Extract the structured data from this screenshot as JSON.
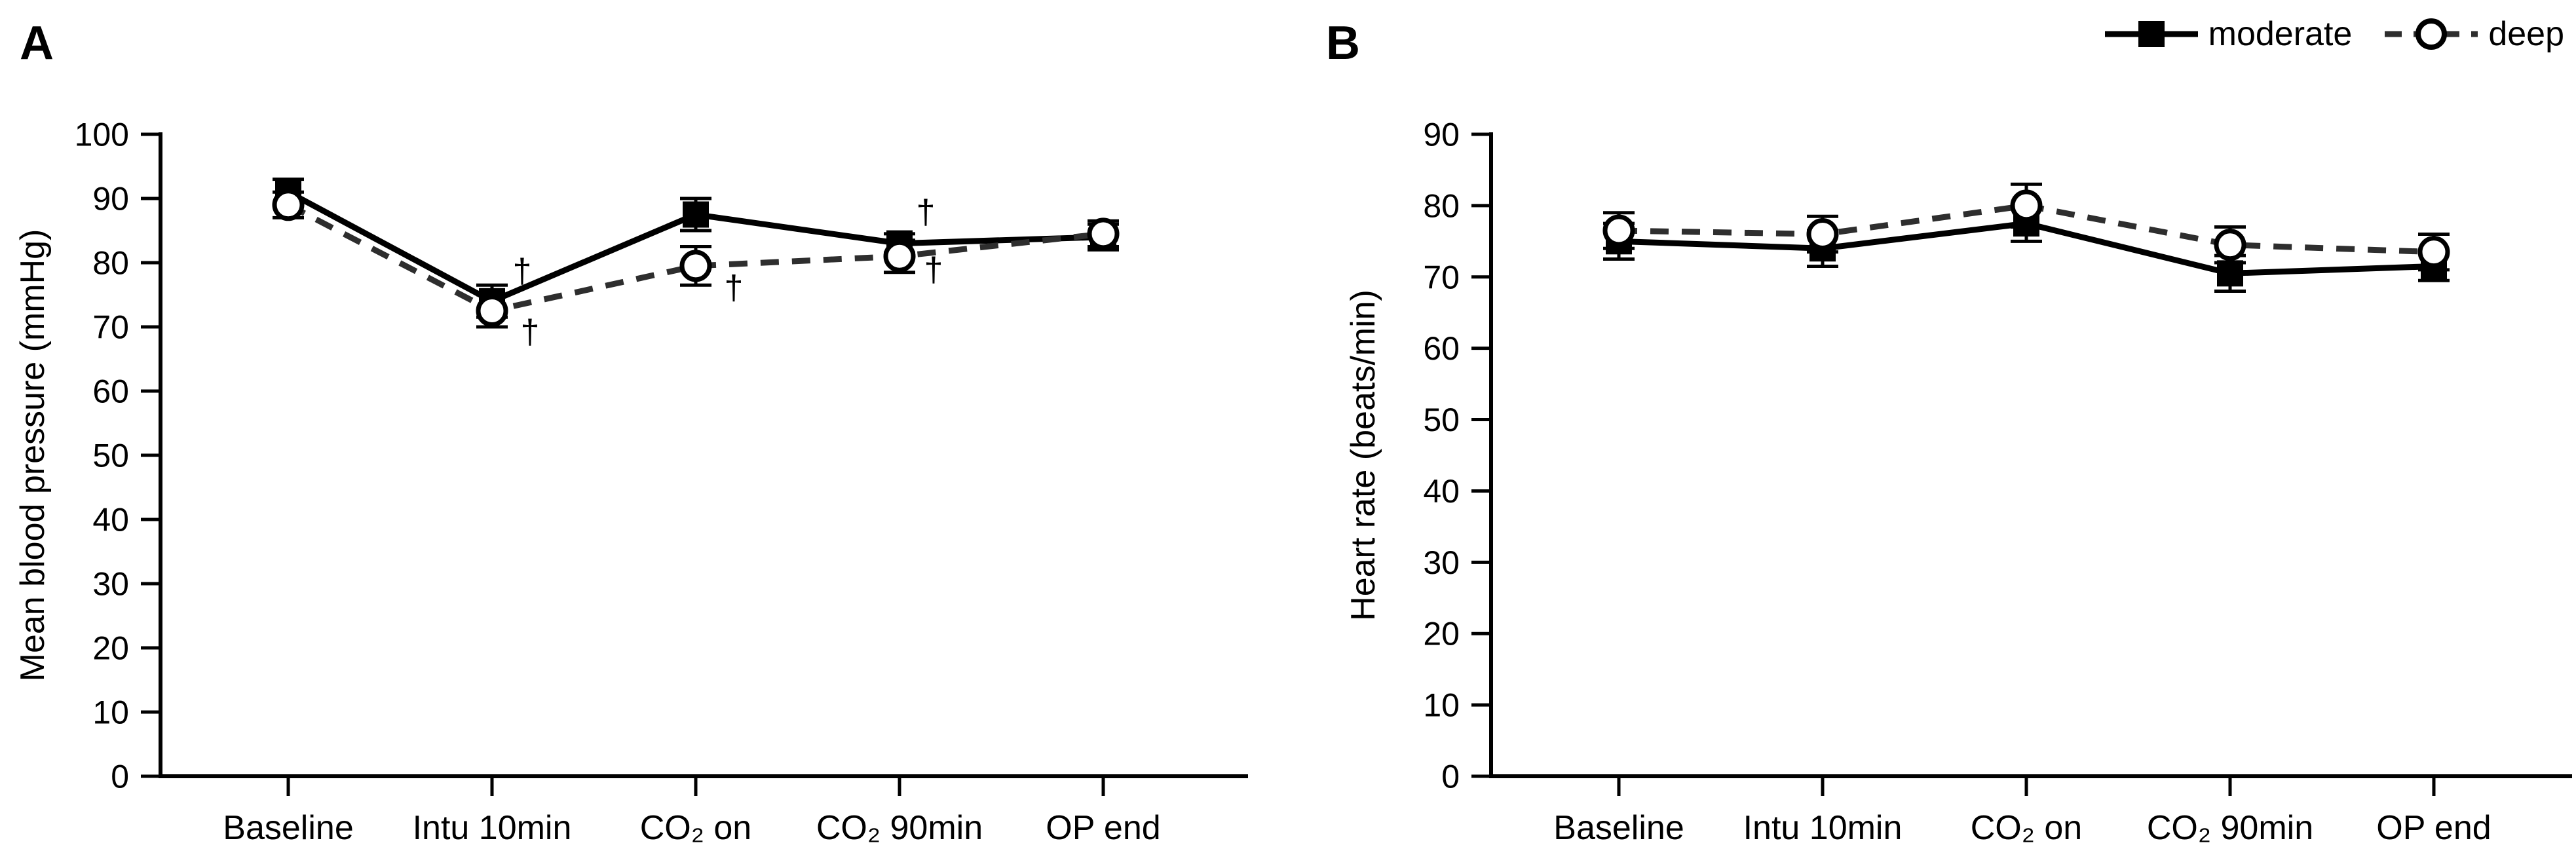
{
  "colors": {
    "ink": "#000000",
    "dash_line": "#2e2e2e",
    "background": "#ffffff",
    "marker_fill": "#ffffff"
  },
  "legend": {
    "position": "top-right",
    "items": [
      {
        "label": "moderate",
        "marker": "filled-square",
        "line": "solid"
      },
      {
        "label": "deep",
        "marker": "open-circle",
        "line": "dashed"
      }
    ]
  },
  "chart_data": [
    {
      "type": "line",
      "panel_label": "A",
      "ylabel": "Mean blood pressure (mmHg)",
      "xlabel": "",
      "ylim": [
        0,
        100
      ],
      "ytick_step": 10,
      "grid": false,
      "error_bars": true,
      "categories": [
        "Baseline",
        "Intu 10min",
        "CO₂ on",
        "CO₂ 90min",
        "OP end"
      ],
      "series": [
        {
          "name": "moderate",
          "marker": "filled-square",
          "line": "solid",
          "values": [
            91,
            74,
            87.5,
            83,
            84
          ],
          "errors": [
            2,
            2.5,
            2.5,
            1.5,
            2
          ]
        },
        {
          "name": "deep",
          "marker": "open-circle",
          "line": "dashed",
          "values": [
            89,
            72.5,
            79.5,
            81,
            84.5
          ],
          "errors": [
            2,
            2.5,
            3,
            2.5,
            2
          ]
        }
      ],
      "annotations": [
        {
          "symbol": "†",
          "category_index": 1,
          "value": 78.8,
          "dx": 46
        },
        {
          "symbol": "†",
          "category_index": 1,
          "value": 69.3,
          "dx": 58
        },
        {
          "symbol": "†",
          "category_index": 2,
          "value": 76.2,
          "dx": 58
        },
        {
          "symbol": "†",
          "category_index": 3,
          "value": 88.0,
          "dx": 40
        },
        {
          "symbol": "†",
          "category_index": 3,
          "value": 79.0,
          "dx": 52
        }
      ]
    },
    {
      "type": "line",
      "panel_label": "B",
      "ylabel": "Heart rate (beats/min)",
      "xlabel": "",
      "ylim": [
        0,
        90
      ],
      "ytick_step": 10,
      "grid": false,
      "error_bars": true,
      "categories": [
        "Baseline",
        "Intu 10min",
        "CO₂ on",
        "CO₂ 90min",
        "OP end"
      ],
      "series": [
        {
          "name": "moderate",
          "marker": "filled-square",
          "line": "solid",
          "values": [
            75,
            74,
            77.5,
            70.5,
            71.5
          ],
          "errors": [
            2.5,
            2.5,
            2.5,
            2.5,
            2
          ]
        },
        {
          "name": "deep",
          "marker": "open-circle",
          "line": "dashed",
          "values": [
            76.5,
            76,
            80,
            74.5,
            73.5
          ],
          "errors": [
            2.5,
            2.5,
            3,
            2.5,
            2.5
          ]
        }
      ],
      "annotations": []
    }
  ]
}
